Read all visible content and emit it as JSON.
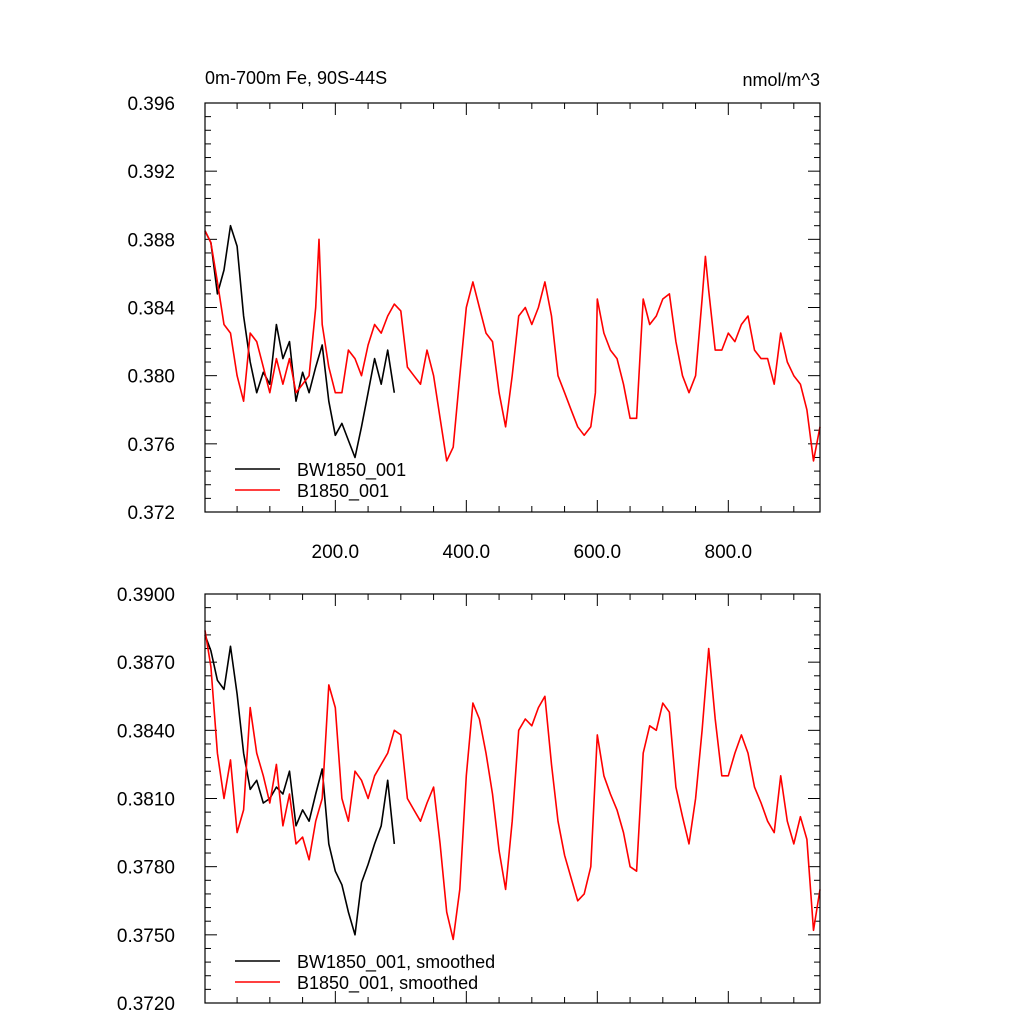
{
  "chart_data": [
    {
      "type": "line",
      "title_left": "0m-700m Fe, 90S-44S",
      "title_right": "nmol/m^3",
      "xlim": [
        1,
        940
      ],
      "ylim": [
        0.372,
        0.396
      ],
      "yticks": [
        "0.372",
        "0.376",
        "0.380",
        "0.384",
        "0.388",
        "0.392",
        "0.396"
      ],
      "xticks": [
        "200.0",
        "400.0",
        "600.0",
        "800.0"
      ],
      "legend_position": "bottom-left",
      "series": [
        {
          "name": "BW1850_001",
          "color": "#000000",
          "x": [
            1,
            10,
            20,
            30,
            40,
            50,
            60,
            70,
            80,
            90,
            100,
            110,
            120,
            130,
            140,
            150,
            160,
            170,
            180,
            190,
            200,
            210,
            220,
            230,
            240,
            250,
            260,
            270,
            280,
            290
          ],
          "y": [
            0.3885,
            0.3878,
            0.3848,
            0.3862,
            0.3888,
            0.3876,
            0.3835,
            0.3808,
            0.379,
            0.3802,
            0.3795,
            0.383,
            0.381,
            0.382,
            0.3785,
            0.3802,
            0.379,
            0.3805,
            0.3818,
            0.3785,
            0.3765,
            0.3772,
            0.3762,
            0.3752,
            0.377,
            0.379,
            0.381,
            0.3795,
            0.3815,
            0.379
          ]
        },
        {
          "name": "B1850_001",
          "color": "#ff0000",
          "x": [
            1,
            10,
            20,
            30,
            40,
            50,
            60,
            70,
            80,
            90,
            100,
            110,
            120,
            130,
            140,
            150,
            160,
            170,
            175,
            180,
            190,
            200,
            210,
            220,
            230,
            240,
            250,
            260,
            270,
            280,
            290,
            300,
            310,
            320,
            330,
            340,
            350,
            360,
            370,
            380,
            390,
            400,
            410,
            420,
            430,
            440,
            450,
            460,
            470,
            480,
            490,
            500,
            510,
            520,
            530,
            540,
            550,
            560,
            570,
            580,
            590,
            597,
            600,
            610,
            620,
            630,
            640,
            650,
            660,
            670,
            680,
            690,
            700,
            710,
            720,
            730,
            740,
            750,
            760,
            765,
            770,
            780,
            790,
            800,
            810,
            820,
            830,
            840,
            850,
            860,
            870,
            880,
            890,
            900,
            910,
            920,
            930,
            940
          ],
          "y": [
            0.3885,
            0.3878,
            0.3855,
            0.383,
            0.3825,
            0.38,
            0.3785,
            0.3825,
            0.382,
            0.3805,
            0.379,
            0.381,
            0.3795,
            0.381,
            0.379,
            0.3795,
            0.38,
            0.384,
            0.388,
            0.383,
            0.3805,
            0.379,
            0.379,
            0.3815,
            0.381,
            0.38,
            0.3818,
            0.383,
            0.3825,
            0.3835,
            0.3842,
            0.3838,
            0.3805,
            0.38,
            0.3795,
            0.3815,
            0.38,
            0.3775,
            0.375,
            0.3758,
            0.38,
            0.384,
            0.3855,
            0.384,
            0.3825,
            0.382,
            0.379,
            0.377,
            0.38,
            0.3835,
            0.384,
            0.383,
            0.384,
            0.3855,
            0.3835,
            0.38,
            0.379,
            0.378,
            0.377,
            0.3765,
            0.377,
            0.379,
            0.3845,
            0.3825,
            0.3815,
            0.381,
            0.3795,
            0.3775,
            0.3775,
            0.3845,
            0.383,
            0.3835,
            0.3845,
            0.3848,
            0.382,
            0.38,
            0.379,
            0.38,
            0.3845,
            0.387,
            0.385,
            0.3815,
            0.3815,
            0.3825,
            0.382,
            0.383,
            0.3835,
            0.3815,
            0.381,
            0.381,
            0.3795,
            0.3825,
            0.3808,
            0.38,
            0.3795,
            0.378,
            0.375,
            0.377
          ]
        }
      ]
    },
    {
      "type": "line",
      "xlim": [
        1,
        940
      ],
      "ylim": [
        0.372,
        0.39
      ],
      "yticks": [
        "0.3720",
        "0.3750",
        "0.3780",
        "0.3810",
        "0.3840",
        "0.3870",
        "0.3900"
      ],
      "legend_position": "bottom-left",
      "series": [
        {
          "name": "BW1850_001, smoothed",
          "color": "#000000",
          "x": [
            1,
            10,
            20,
            30,
            40,
            50,
            60,
            70,
            80,
            90,
            100,
            110,
            120,
            130,
            140,
            150,
            160,
            170,
            180,
            190,
            200,
            210,
            220,
            230,
            240,
            250,
            260,
            270,
            280,
            290
          ],
          "y": [
            0.3882,
            0.3875,
            0.3862,
            0.3858,
            0.3877,
            0.3856,
            0.383,
            0.3814,
            0.3818,
            0.3808,
            0.381,
            0.3815,
            0.3812,
            0.3822,
            0.3798,
            0.3805,
            0.38,
            0.3812,
            0.3823,
            0.379,
            0.3778,
            0.3772,
            0.376,
            0.375,
            0.3773,
            0.3781,
            0.379,
            0.3798,
            0.3818,
            0.379
          ]
        },
        {
          "name": "B1850_001, smoothed",
          "color": "#ff0000",
          "x": [
            1,
            10,
            20,
            30,
            40,
            50,
            60,
            70,
            80,
            90,
            100,
            110,
            120,
            130,
            140,
            150,
            160,
            170,
            180,
            190,
            200,
            210,
            220,
            230,
            240,
            250,
            260,
            270,
            280,
            290,
            300,
            310,
            320,
            330,
            340,
            350,
            360,
            370,
            380,
            390,
            400,
            410,
            420,
            430,
            440,
            450,
            460,
            470,
            480,
            490,
            500,
            510,
            520,
            530,
            540,
            550,
            560,
            570,
            580,
            590,
            600,
            610,
            620,
            630,
            640,
            650,
            660,
            670,
            680,
            690,
            700,
            710,
            720,
            730,
            740,
            750,
            760,
            770,
            780,
            790,
            800,
            810,
            820,
            830,
            840,
            850,
            860,
            870,
            880,
            890,
            900,
            910,
            920,
            930,
            940
          ],
          "y": [
            0.3884,
            0.3868,
            0.383,
            0.381,
            0.3827,
            0.3795,
            0.3805,
            0.385,
            0.383,
            0.382,
            0.3808,
            0.3825,
            0.3798,
            0.3812,
            0.379,
            0.3793,
            0.3783,
            0.38,
            0.381,
            0.386,
            0.385,
            0.381,
            0.38,
            0.3822,
            0.3818,
            0.381,
            0.382,
            0.3825,
            0.383,
            0.384,
            0.3838,
            0.381,
            0.3805,
            0.38,
            0.3808,
            0.3815,
            0.379,
            0.376,
            0.3748,
            0.377,
            0.382,
            0.3852,
            0.3845,
            0.383,
            0.3812,
            0.3787,
            0.377,
            0.38,
            0.384,
            0.3845,
            0.3842,
            0.385,
            0.3855,
            0.3825,
            0.38,
            0.3785,
            0.3775,
            0.3765,
            0.3768,
            0.378,
            0.3838,
            0.382,
            0.3812,
            0.3805,
            0.3795,
            0.378,
            0.3778,
            0.383,
            0.3842,
            0.384,
            0.3852,
            0.3848,
            0.3815,
            0.3802,
            0.379,
            0.381,
            0.384,
            0.3876,
            0.3845,
            0.382,
            0.382,
            0.383,
            0.3838,
            0.383,
            0.3815,
            0.3808,
            0.38,
            0.3795,
            0.382,
            0.38,
            0.379,
            0.3802,
            0.3792,
            0.3752,
            0.377
          ]
        }
      ]
    }
  ]
}
